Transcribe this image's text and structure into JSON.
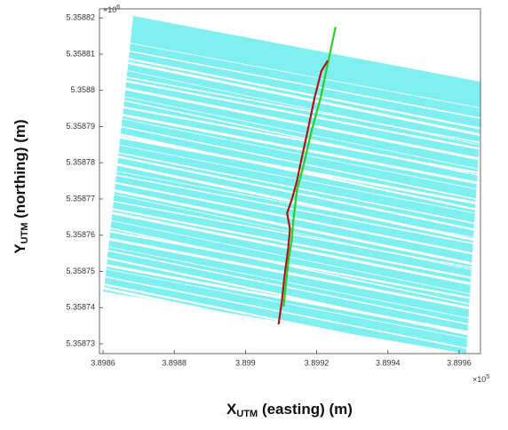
{
  "chart_data": {
    "type": "line",
    "x_label": {
      "main": "X",
      "sub": "UTM",
      "rest": " (easting) (m)"
    },
    "y_label": {
      "main": "Y",
      "sub": "UTM",
      "rest": " (northing) (m)"
    },
    "x_exponent": {
      "base": "×10",
      "power": "5"
    },
    "y_exponent": {
      "base": "×10",
      "power": "6"
    },
    "xlim": [
      389859,
      389966
    ],
    "ylim": [
      5358727.3,
      5358822.5
    ],
    "xticks": [
      {
        "value": 389860,
        "label": "3.8986"
      },
      {
        "value": 389880,
        "label": "3.8988"
      },
      {
        "value": 389900,
        "label": "3.899"
      },
      {
        "value": 389920,
        "label": "3.8992"
      },
      {
        "value": 389940,
        "label": "3.8994"
      },
      {
        "value": 389960,
        "label": "3.8996"
      }
    ],
    "yticks": [
      {
        "value": 5358730,
        "label": "5.35873"
      },
      {
        "value": 5358740,
        "label": "5.35874"
      },
      {
        "value": 5358750,
        "label": "5.35875"
      },
      {
        "value": 5358760,
        "label": "5.35876"
      },
      {
        "value": 5358770,
        "label": "5.35877"
      },
      {
        "value": 5358780,
        "label": "5.35878"
      },
      {
        "value": 5358790,
        "label": "5.35879"
      },
      {
        "value": 5358800,
        "label": "5.3588"
      },
      {
        "value": 5358810,
        "label": "5.35881"
      },
      {
        "value": 5358820,
        "label": "5.35882"
      }
    ],
    "series": [
      {
        "color": "#2ecc2e",
        "x": [
          389925.3,
          389923.3,
          389921.1,
          389918.4,
          389916.4,
          389914.4,
          389913.4,
          389913.0,
          389912.2,
          389911.5,
          389910.7
        ],
        "y": [
          5358817.5,
          5358808.2,
          5358797.9,
          5358788.2,
          5358779.6,
          5358772.2,
          5358763.6,
          5358758.7,
          5358753.8,
          5358747.7,
          5358740.3
        ]
      },
      {
        "color": "#b01515",
        "x": [
          389909.3,
          389910.2,
          389911.0,
          389912.0,
          389912.5,
          389911.7,
          389913.0,
          389914.4,
          389915.7,
          389917.6,
          389919.4,
          389921.3,
          389923.1
        ],
        "y": [
          5358735.4,
          5358741.6,
          5358748.9,
          5358756.3,
          5358761.7,
          5358766.1,
          5358769.8,
          5358774.7,
          5358780.8,
          5358789.4,
          5358797.9,
          5358805.3,
          5358808.2
        ]
      }
    ]
  }
}
